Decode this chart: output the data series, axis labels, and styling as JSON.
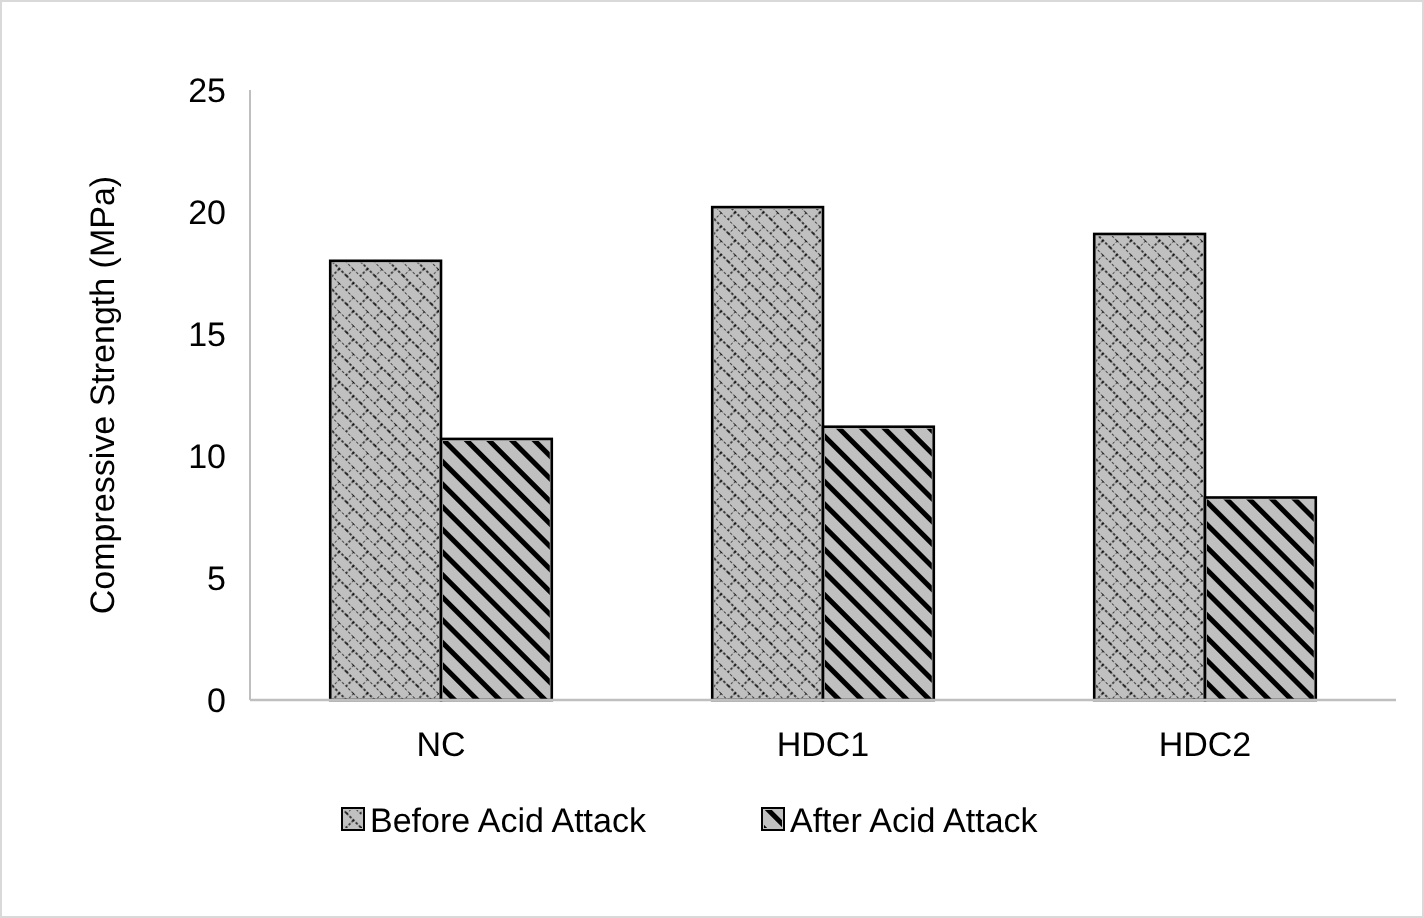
{
  "chart_data": {
    "type": "bar",
    "ylabel": "Compressive Strength (MPa)",
    "categories": [
      "NC",
      "HDC1",
      "HDC2"
    ],
    "series": [
      {
        "name": "Before Acid Attack",
        "color": "#c0c0c0",
        "values": [
          18,
          20.2,
          19.1
        ]
      },
      {
        "name": "After Acid Attack",
        "color": "#c0c0c0",
        "values": [
          10.7,
          11.2,
          8.3
        ]
      }
    ],
    "ylim": [
      0,
      25
    ],
    "yticks": [
      0,
      5,
      10,
      15,
      20,
      25
    ],
    "grid": false,
    "legend": "bottom"
  }
}
